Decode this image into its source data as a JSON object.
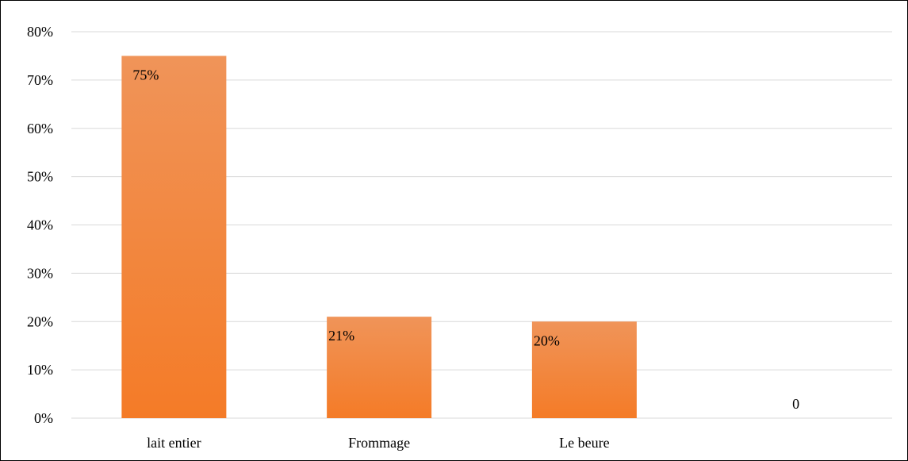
{
  "chart_data": {
    "type": "bar",
    "categories": [
      "lait entier",
      "Frommage",
      "Le beure",
      ""
    ],
    "values": [
      0.75,
      0.21,
      0.2,
      0
    ],
    "data_labels": [
      "75%",
      "21%",
      "20%",
      "0"
    ],
    "ylim": [
      0,
      0.8
    ],
    "yticks": [
      0,
      0.1,
      0.2,
      0.3,
      0.4,
      0.5,
      0.6,
      0.7,
      0.8
    ],
    "ytick_labels": [
      "0%",
      "10%",
      "20%",
      "30%",
      "40%",
      "50%",
      "60%",
      "70%",
      "80%"
    ],
    "grid": true,
    "legend": "none",
    "colors": {
      "bar_top": "#F09459",
      "bar_bottom": "#F47B27",
      "grid": "#D9D9D9",
      "frame": "#000000"
    }
  }
}
